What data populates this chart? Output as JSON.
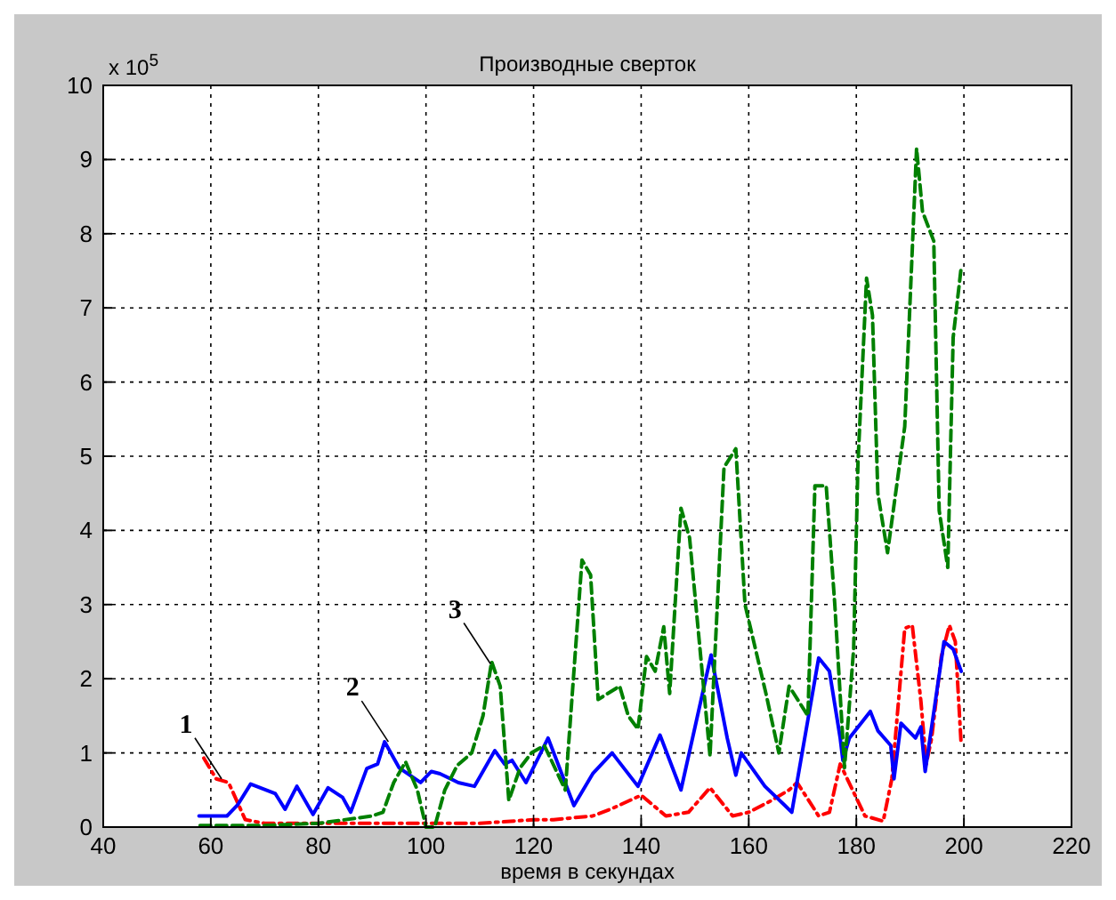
{
  "chart_data": {
    "type": "line",
    "title": "Производные сверток",
    "xlabel": "время в секундах",
    "xlim": [
      40,
      220
    ],
    "xticks": [
      40,
      60,
      80,
      100,
      120,
      140,
      160,
      180,
      200,
      220
    ],
    "ylim": [
      0,
      10
    ],
    "yticks": [
      0,
      1,
      2,
      3,
      4,
      5,
      6,
      7,
      8,
      9,
      10
    ],
    "grid": true,
    "annotations": [
      "x 10$^{5}$",
      {
        "text": "1",
        "x": 62,
        "y": 0.65
      },
      {
        "text": "2",
        "x": 93,
        "y": 1.15
      },
      {
        "text": "3",
        "x": 112,
        "y": 2.2
      }
    ],
    "series": [
      {
        "color": "#ff0000",
        "line_style": "dashdot",
        "x": [
          58.7,
          61,
          63.3,
          66.4,
          70,
          80,
          90,
          100,
          110,
          120,
          123.7,
          131,
          134.6,
          140,
          144.6,
          148.8,
          152.8,
          157,
          160,
          164,
          167.5,
          169,
          173,
          175,
          177,
          181.6,
          185,
          186.6,
          189,
          190.4,
          192,
          193,
          194,
          195.8,
          197.3,
          198.4,
          199.5
        ],
        "values": [
          0.93,
          0.65,
          0.6,
          0.1,
          0.05,
          0.05,
          0.05,
          0.05,
          0.05,
          0.1,
          0.1,
          0.15,
          0.25,
          0.43,
          0.15,
          0.2,
          0.53,
          0.15,
          0.2,
          0.35,
          0.5,
          0.6,
          0.15,
          0.2,
          0.85,
          0.15,
          0.08,
          0.65,
          2.68,
          2.72,
          1.7,
          0.85,
          1.2,
          2.3,
          2.72,
          2.5,
          1.1
        ]
      },
      {
        "color": "#0000ff",
        "line_style": "solid",
        "x": [
          57.8,
          63,
          65,
          67.4,
          72,
          73.8,
          76,
          79,
          81.8,
          84.5,
          86,
          89,
          91,
          92.3,
          95,
          97,
          99,
          101,
          102.6,
          106,
          109,
          112.8,
          114.6,
          116,
          118.6,
          122.7,
          127.5,
          131,
          134.6,
          139.4,
          143.5,
          147.4,
          153,
          156,
          157.6,
          158.6,
          163,
          166.6,
          168,
          173,
          175,
          177,
          177.5,
          178.7,
          182.6,
          184,
          186.4,
          187,
          188.3,
          191,
          192,
          192.8,
          196.3,
          198,
          199.5
        ],
        "values": [
          0.15,
          0.15,
          0.3,
          0.58,
          0.45,
          0.24,
          0.55,
          0.17,
          0.53,
          0.4,
          0.2,
          0.79,
          0.85,
          1.15,
          0.8,
          0.7,
          0.6,
          0.75,
          0.72,
          0.6,
          0.55,
          1.03,
          0.85,
          0.9,
          0.6,
          1.2,
          0.29,
          0.72,
          1.0,
          0.55,
          1.24,
          0.5,
          2.32,
          1.2,
          0.7,
          1.0,
          0.55,
          0.3,
          0.2,
          2.28,
          2.1,
          1.2,
          0.9,
          1.2,
          1.56,
          1.3,
          1.1,
          0.65,
          1.4,
          1.2,
          1.35,
          0.75,
          2.5,
          2.4,
          2.1
        ]
      },
      {
        "color": "#008000",
        "line_style": "dashed",
        "x": [
          58,
          70,
          80,
          90,
          92,
          94,
          96.2,
          98.4,
          100,
          101.6,
          103.5,
          105.8,
          108.5,
          110.6,
          112.2,
          113.8,
          115.4,
          117.5,
          119.6,
          122,
          125.9,
          129,
          130.6,
          132,
          136,
          137.6,
          139.4,
          141,
          142.6,
          144.2,
          145.3,
          147.4,
          149,
          152.8,
          155.4,
          157.6,
          159.3,
          161.9,
          163.2,
          165.6,
          167.5,
          171,
          172.3,
          174.4,
          176,
          177.8,
          179.5,
          180.3,
          181.9,
          183,
          184,
          185.8,
          189,
          191.2,
          192.3,
          194.4,
          195.4,
          197,
          198,
          199.5
        ],
        "values": [
          0.02,
          0.02,
          0.05,
          0.15,
          0.2,
          0.6,
          0.88,
          0.5,
          0.0,
          0.0,
          0.5,
          0.83,
          1.0,
          1.5,
          2.23,
          1.9,
          0.36,
          0.8,
          1.0,
          1.1,
          0.5,
          3.6,
          3.4,
          1.72,
          1.9,
          1.5,
          1.32,
          2.3,
          2.1,
          2.7,
          1.8,
          4.3,
          3.9,
          0.96,
          4.85,
          5.1,
          3.0,
          2.2,
          1.8,
          1.0,
          1.9,
          1.5,
          4.6,
          4.6,
          3.0,
          0.8,
          2.4,
          4.9,
          7.4,
          6.9,
          4.5,
          3.7,
          5.4,
          9.15,
          8.3,
          7.9,
          4.27,
          3.5,
          6.6,
          7.55
        ]
      }
    ]
  }
}
